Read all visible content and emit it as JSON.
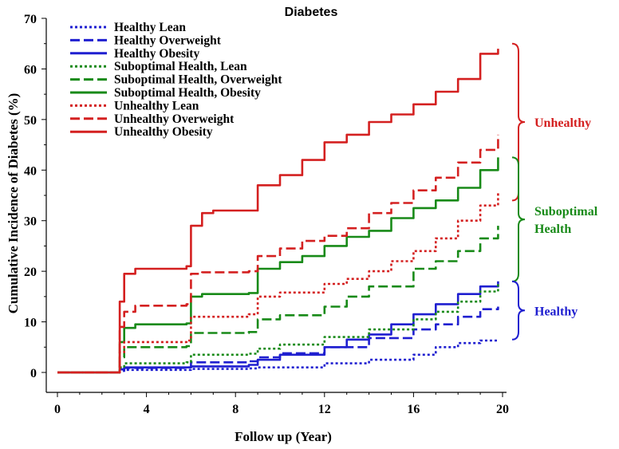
{
  "chart_data": {
    "type": "line",
    "title": "Diabetes",
    "xlabel": "Follow up (Year)",
    "ylabel": "Cumulative Incidence of Diabetes (%)",
    "xlim": [
      0,
      20
    ],
    "ylim": [
      0,
      70
    ],
    "xticks": [
      "0",
      "4",
      "8",
      "12",
      "16",
      "20"
    ],
    "yticks": [
      "0",
      "10",
      "20",
      "30",
      "40",
      "50",
      "60",
      "70"
    ],
    "grid": false,
    "legend_position": "top-left",
    "series": [
      {
        "name": "Healthy Lean",
        "color": "#1f1fd0",
        "dash": "dotted",
        "points": [
          [
            0,
            0
          ],
          [
            2.6,
            0
          ],
          [
            2.8,
            0.3
          ],
          [
            3,
            0.5
          ],
          [
            5.8,
            0.5
          ],
          [
            6,
            0.7
          ],
          [
            8.6,
            0.8
          ],
          [
            9,
            1
          ],
          [
            12,
            1.8
          ],
          [
            14,
            2.5
          ],
          [
            16,
            3.5
          ],
          [
            17,
            5
          ],
          [
            18,
            5.8
          ],
          [
            19,
            6.3
          ],
          [
            19.8,
            6.5
          ]
        ]
      },
      {
        "name": "Healthy Overweight",
        "color": "#1f1fd0",
        "dash": "dashed",
        "points": [
          [
            0,
            0
          ],
          [
            2.6,
            0
          ],
          [
            2.8,
            0.5
          ],
          [
            3,
            0.9
          ],
          [
            5.8,
            1
          ],
          [
            6,
            2
          ],
          [
            8.6,
            2.2
          ],
          [
            9,
            3
          ],
          [
            10,
            3.8
          ],
          [
            12,
            5
          ],
          [
            14,
            6.8
          ],
          [
            16,
            8.5
          ],
          [
            17,
            9.5
          ],
          [
            18,
            11
          ],
          [
            19,
            12.5
          ],
          [
            19.8,
            13
          ]
        ]
      },
      {
        "name": "Healthy Obesity",
        "color": "#1f1fd0",
        "dash": "solid",
        "points": [
          [
            0,
            0
          ],
          [
            2.6,
            0
          ],
          [
            2.8,
            0.6
          ],
          [
            3,
            1
          ],
          [
            5.8,
            1
          ],
          [
            6,
            1.2
          ],
          [
            8.6,
            1.5
          ],
          [
            9,
            2.5
          ],
          [
            10,
            3.5
          ],
          [
            12,
            5
          ],
          [
            13,
            6.5
          ],
          [
            14,
            7.5
          ],
          [
            15,
            9.5
          ],
          [
            16,
            11.5
          ],
          [
            17,
            13.5
          ],
          [
            18,
            15.5
          ],
          [
            19,
            17
          ],
          [
            19.8,
            18
          ]
        ]
      },
      {
        "name": "Suboptimal Health, Lean",
        "color": "#188a18",
        "dash": "dotted",
        "points": [
          [
            0,
            0
          ],
          [
            2.6,
            0
          ],
          [
            2.8,
            1
          ],
          [
            3,
            1.8
          ],
          [
            5.8,
            2
          ],
          [
            6,
            3.5
          ],
          [
            8.6,
            3.7
          ],
          [
            9,
            4.7
          ],
          [
            10,
            5.5
          ],
          [
            12,
            7
          ],
          [
            14,
            8.5
          ],
          [
            16,
            10.5
          ],
          [
            17,
            12
          ],
          [
            18,
            14
          ],
          [
            19,
            16
          ],
          [
            19.8,
            17.5
          ]
        ]
      },
      {
        "name": "Suboptimal Health, Overweight",
        "color": "#188a18",
        "dash": "dashed",
        "points": [
          [
            0,
            0
          ],
          [
            2.6,
            0
          ],
          [
            2.8,
            3
          ],
          [
            3,
            5
          ],
          [
            5.8,
            5.2
          ],
          [
            6,
            7.8
          ],
          [
            8.6,
            8
          ],
          [
            9,
            10.5
          ],
          [
            10,
            11.3
          ],
          [
            12,
            13
          ],
          [
            13,
            15
          ],
          [
            14,
            17
          ],
          [
            16,
            20.5
          ],
          [
            17,
            22
          ],
          [
            18,
            24
          ],
          [
            19,
            26.5
          ],
          [
            19.8,
            29
          ]
        ]
      },
      {
        "name": "Suboptimal Health, Obesity",
        "color": "#188a18",
        "dash": "solid",
        "points": [
          [
            0,
            0
          ],
          [
            2.6,
            0
          ],
          [
            2.8,
            6
          ],
          [
            3,
            8.8
          ],
          [
            3.5,
            9.5
          ],
          [
            5.8,
            9.7
          ],
          [
            6,
            15
          ],
          [
            6.5,
            15.5
          ],
          [
            8.6,
            15.7
          ],
          [
            9,
            20.5
          ],
          [
            10,
            21.8
          ],
          [
            11,
            23
          ],
          [
            12,
            25
          ],
          [
            13,
            26.8
          ],
          [
            14,
            28
          ],
          [
            15,
            30.5
          ],
          [
            16,
            32.5
          ],
          [
            17,
            34
          ],
          [
            18,
            36.5
          ],
          [
            19,
            40
          ],
          [
            19.8,
            42.5
          ]
        ]
      },
      {
        "name": "Unhealthy Lean",
        "color": "#d42020",
        "dash": "dotted",
        "points": [
          [
            0,
            0
          ],
          [
            2.6,
            0
          ],
          [
            2.8,
            4
          ],
          [
            3,
            6
          ],
          [
            5.8,
            6.3
          ],
          [
            6,
            11
          ],
          [
            8.6,
            11.5
          ],
          [
            9,
            15
          ],
          [
            10,
            15.8
          ],
          [
            12,
            17.5
          ],
          [
            13,
            18.5
          ],
          [
            14,
            20
          ],
          [
            15,
            22
          ],
          [
            16,
            24
          ],
          [
            17,
            26.5
          ],
          [
            18,
            30
          ],
          [
            19,
            33
          ],
          [
            19.8,
            35.5
          ]
        ]
      },
      {
        "name": "Unhealthy Overweight",
        "color": "#d42020",
        "dash": "dashed",
        "points": [
          [
            0,
            0
          ],
          [
            2.6,
            0
          ],
          [
            2.8,
            9
          ],
          [
            3,
            12
          ],
          [
            3.5,
            13.2
          ],
          [
            5.8,
            13.5
          ],
          [
            6,
            19.5
          ],
          [
            6.5,
            19.8
          ],
          [
            8.6,
            20
          ],
          [
            9,
            23
          ],
          [
            10,
            24.5
          ],
          [
            11,
            26
          ],
          [
            12,
            27
          ],
          [
            13,
            28.5
          ],
          [
            14,
            31.5
          ],
          [
            15,
            33.5
          ],
          [
            16,
            36
          ],
          [
            17,
            38.5
          ],
          [
            18,
            41.5
          ],
          [
            19,
            44
          ],
          [
            19.8,
            47
          ]
        ]
      },
      {
        "name": "Unhealthy Obesity",
        "color": "#d42020",
        "dash": "solid",
        "points": [
          [
            0,
            0
          ],
          [
            2.6,
            0
          ],
          [
            2.8,
            14
          ],
          [
            3,
            19.5
          ],
          [
            3.5,
            20.5
          ],
          [
            5.8,
            21
          ],
          [
            6,
            29
          ],
          [
            6.5,
            31.5
          ],
          [
            7,
            32
          ],
          [
            8.6,
            32
          ],
          [
            9,
            37
          ],
          [
            10,
            39
          ],
          [
            11,
            42
          ],
          [
            12,
            45.5
          ],
          [
            13,
            47
          ],
          [
            14,
            49.5
          ],
          [
            15,
            51
          ],
          [
            16,
            53
          ],
          [
            17,
            55.5
          ],
          [
            18,
            58
          ],
          [
            19,
            63
          ],
          [
            19.8,
            64
          ]
        ]
      }
    ],
    "groups": [
      {
        "label": "Unhealthy",
        "color": "#d42020",
        "range": [
          34,
          65
        ]
      },
      {
        "label": "Suboptimal Health",
        "color": "#188a18",
        "range": [
          18,
          42.5
        ]
      },
      {
        "label": "Healthy",
        "color": "#1f1fd0",
        "range": [
          6.5,
          18
        ]
      }
    ]
  }
}
